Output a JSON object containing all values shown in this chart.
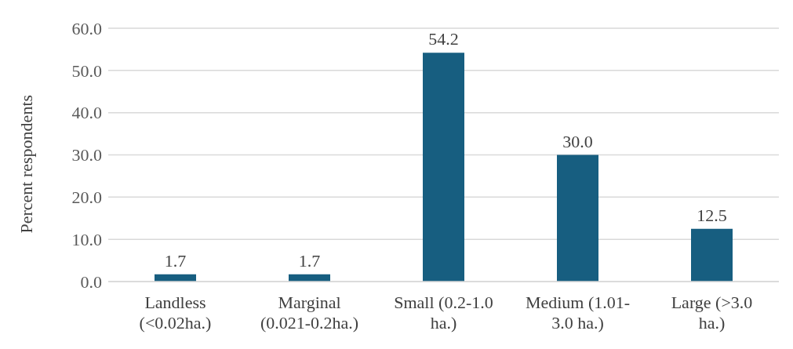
{
  "chart_data": {
    "type": "bar",
    "ylabel": "Percent respondents",
    "categories": [
      "Landless (<0.02ha.)",
      "Marginal (0.021-0.2ha.)",
      "Small (0.2-1.0 ha.)",
      "Medium (1.01-3.0 ha.)",
      "Large (>3.0 ha.)"
    ],
    "values": [
      1.7,
      1.7,
      54.2,
      30.0,
      12.5
    ],
    "value_labels": [
      "1.7",
      "1.7",
      "54.2",
      "30.0",
      "12.5"
    ],
    "color": "#175e80",
    "ylim": [
      0,
      60
    ],
    "yticks": [
      {
        "value": 0,
        "label": "0.0"
      },
      {
        "value": 10,
        "label": "10.0"
      },
      {
        "value": 20,
        "label": "20.0"
      },
      {
        "value": 30,
        "label": "30.0"
      },
      {
        "value": 40,
        "label": "40.0"
      },
      {
        "value": 50,
        "label": "50.0"
      },
      {
        "value": 60,
        "label": "60.0"
      }
    ],
    "grid": "y",
    "legend": false
  }
}
